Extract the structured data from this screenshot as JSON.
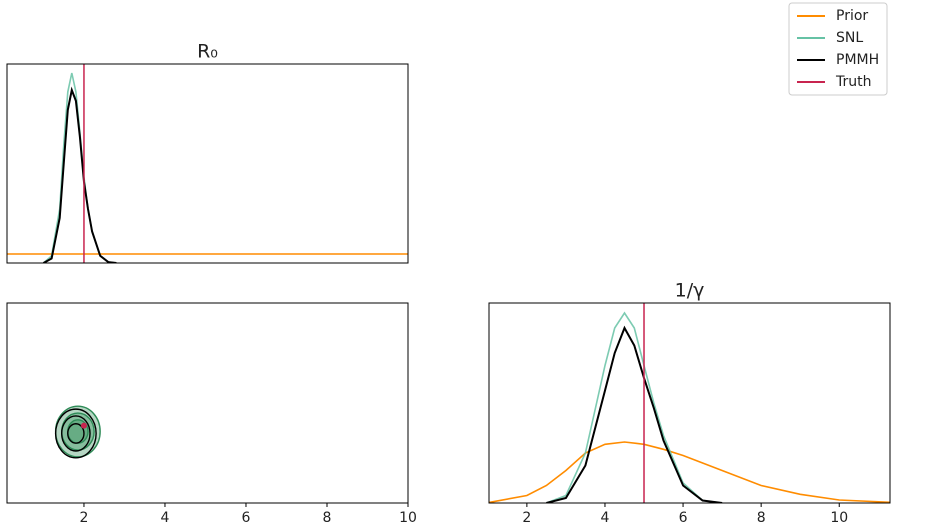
{
  "chart_data": [
    {
      "type": "line",
      "title": "R₀",
      "xlim": [
        0.1,
        10
      ],
      "ylim": [
        0,
        2.21
      ],
      "series": [
        {
          "name": "Prior",
          "color": "#ff8c00",
          "x": [
            0.1,
            10
          ],
          "values": [
            0.1,
            0.1
          ]
        },
        {
          "name": "SNL",
          "color": "#66c2a5",
          "x": [
            1.0,
            1.2,
            1.4,
            1.5,
            1.6,
            1.7,
            1.8,
            1.9,
            2.0,
            2.1,
            2.2,
            2.4,
            2.6,
            2.8
          ],
          "values": [
            0,
            0.08,
            0.6,
            1.3,
            1.9,
            2.11,
            1.9,
            1.45,
            0.95,
            0.6,
            0.35,
            0.08,
            0.01,
            0
          ]
        },
        {
          "name": "PMMH",
          "color": "#000000",
          "x": [
            1.0,
            1.2,
            1.4,
            1.5,
            1.6,
            1.7,
            1.8,
            1.9,
            2.0,
            2.1,
            2.2,
            2.4,
            2.6,
            2.8
          ],
          "values": [
            0,
            0.05,
            0.5,
            1.1,
            1.7,
            1.92,
            1.8,
            1.4,
            0.9,
            0.6,
            0.35,
            0.08,
            0.01,
            0
          ]
        }
      ],
      "truth": {
        "name": "Truth",
        "color": "#c8244f",
        "value": 2
      }
    },
    {
      "type": "contour",
      "xlim": [
        0.1,
        10
      ],
      "ylim": [
        1.03,
        11.3
      ],
      "xticks": [
        2,
        4,
        6,
        8,
        10
      ],
      "series": [
        {
          "color": "#2e8b57",
          "contours": [
            {
              "x": 1.85,
              "y": 4.7,
              "rx": 0.55,
              "ry": 1.3
            },
            {
              "x": 1.85,
              "y": 4.7,
              "rx": 0.4,
              "ry": 0.95
            },
            {
              "x": 1.85,
              "y": 4.7,
              "rx": 0.25,
              "ry": 0.6
            }
          ]
        },
        {
          "color": "#000000",
          "contours": [
            {
              "x": 1.8,
              "y": 4.6,
              "rx": 0.5,
              "ry": 1.25
            },
            {
              "x": 1.8,
              "y": 4.6,
              "rx": 0.35,
              "ry": 0.9
            },
            {
              "x": 1.8,
              "y": 4.6,
              "rx": 0.2,
              "ry": 0.5
            }
          ]
        }
      ],
      "truth": {
        "color": "#c8244f",
        "x": 2,
        "y": 5
      }
    },
    {
      "type": "line",
      "title": "1/γ",
      "xlim": [
        1.03,
        11.3
      ],
      "ylim": [
        0,
        0.8
      ],
      "xticks": [
        2,
        4,
        6,
        8,
        10
      ],
      "series": [
        {
          "color": "#ff8c00",
          "x": [
            1.03,
            2,
            2.5,
            3,
            3.5,
            4,
            4.5,
            5,
            5.5,
            6,
            6.5,
            7,
            8,
            9,
            10,
            11.3
          ],
          "values": [
            0.002,
            0.03,
            0.07,
            0.13,
            0.2,
            0.235,
            0.244,
            0.235,
            0.215,
            0.19,
            0.16,
            0.13,
            0.07,
            0.035,
            0.012,
            0.003
          ]
        },
        {
          "color": "#66c2a5",
          "x": [
            2.5,
            3,
            3.5,
            4,
            4.25,
            4.5,
            4.75,
            5,
            5.25,
            5.5,
            6,
            6.5,
            7
          ],
          "values": [
            0,
            0.03,
            0.2,
            0.55,
            0.7,
            0.76,
            0.7,
            0.55,
            0.4,
            0.27,
            0.08,
            0.01,
            0
          ]
        },
        {
          "color": "#000000",
          "x": [
            2.5,
            3,
            3.5,
            4,
            4.25,
            4.5,
            4.75,
            5,
            5.25,
            5.5,
            6,
            6.5,
            7
          ],
          "values": [
            0,
            0.02,
            0.15,
            0.45,
            0.6,
            0.7,
            0.63,
            0.5,
            0.38,
            0.25,
            0.07,
            0.01,
            0
          ]
        }
      ],
      "truth": {
        "color": "#c8244f",
        "value": 5
      }
    }
  ]
}
